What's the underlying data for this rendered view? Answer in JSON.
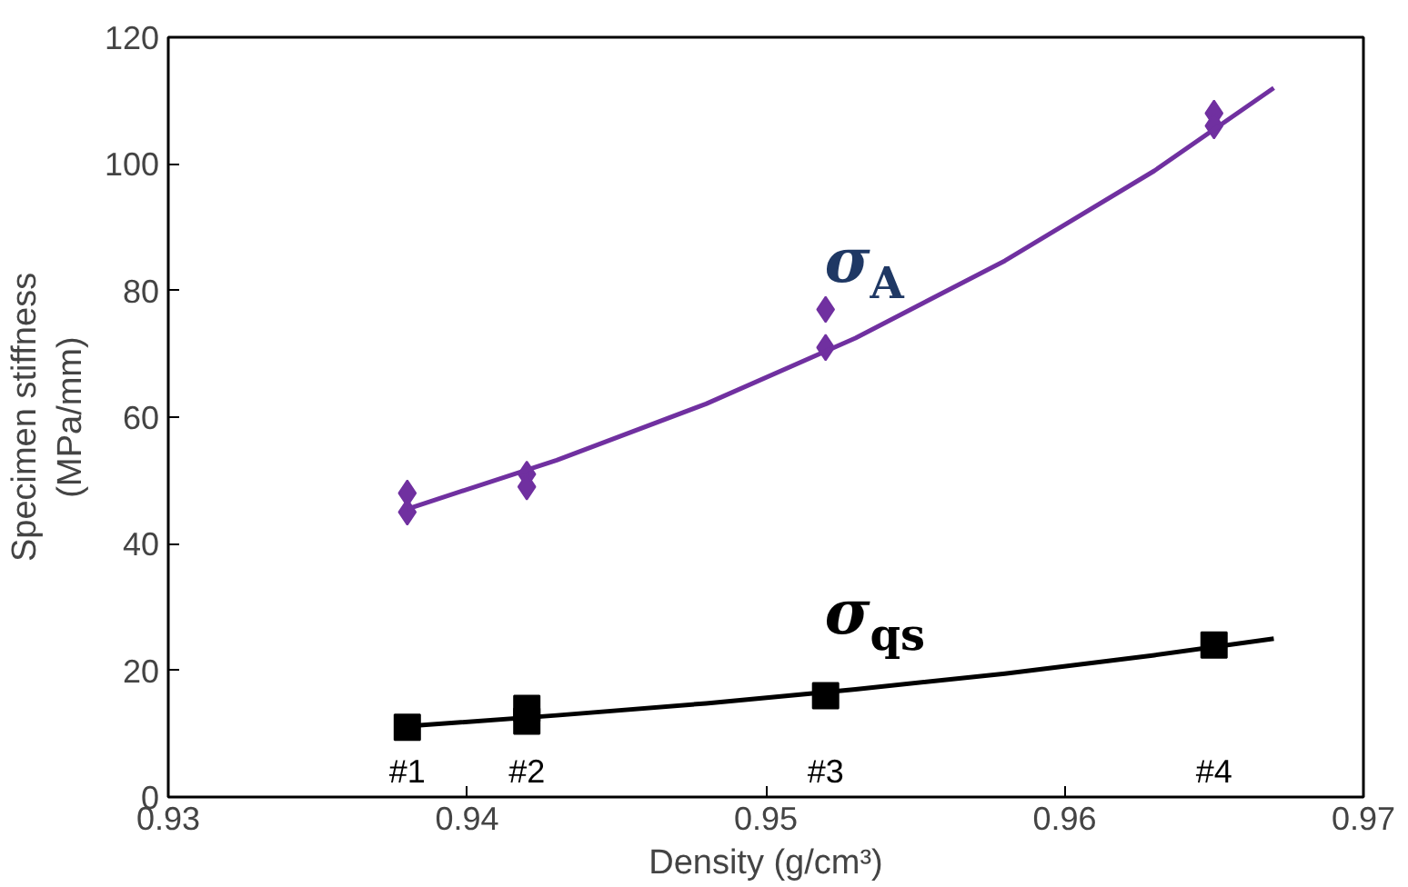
{
  "chart_data": {
    "type": "scatter",
    "xlabel": "Density (g/cm³)",
    "ylabel": "Specimen stiffness\n(MPa/mm)",
    "xlim": [
      0.93,
      0.97
    ],
    "xticks": [
      0.93,
      0.94,
      0.95,
      0.96,
      0.97
    ],
    "ylim": [
      0,
      120
    ],
    "yticks": [
      0,
      20,
      40,
      60,
      80,
      100,
      120
    ],
    "grid": false,
    "legend": false,
    "series": [
      {
        "marker": "diamond",
        "color": "#7030a0",
        "x": [
          0.938,
          0.938,
          0.942,
          0.942,
          0.952,
          0.952,
          0.965,
          0.965
        ],
        "values": [
          48,
          45,
          51,
          49,
          77,
          71,
          108,
          106
        ]
      },
      {
        "name": "σ$_{A}$",
        "type": "line",
        "line_style": "solid",
        "color": "#7030a0",
        "x": [
          0.938,
          0.943,
          0.948,
          0.953,
          0.958,
          0.963,
          0.967
        ],
        "values": [
          45.5,
          53.2,
          62.1,
          72.5,
          84.7,
          98.9,
          112
        ]
      },
      {
        "marker": "square",
        "color": "#000000",
        "x": [
          0.938,
          0.942,
          0.942,
          0.952,
          0.965
        ],
        "values": [
          11,
          14,
          12,
          16,
          24
        ]
      },
      {
        "name": "σ$_{qs}$",
        "type": "line",
        "line_style": "solid",
        "color": "#000000",
        "x": [
          0.938,
          0.943,
          0.948,
          0.953,
          0.958,
          0.963,
          0.967
        ],
        "values": [
          11.2,
          12.9,
          14.8,
          17.0,
          19.5,
          22.4,
          25
        ]
      }
    ],
    "annotations": [
      "#1",
      "#2",
      "#3",
      "#4"
    ]
  }
}
